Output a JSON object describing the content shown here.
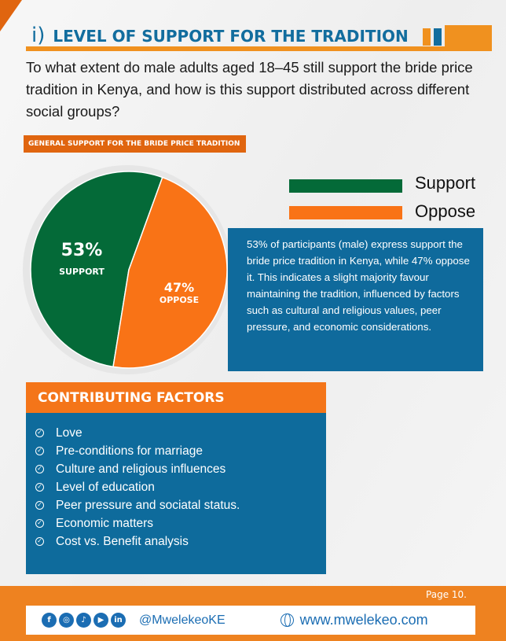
{
  "header": {
    "number": "i)",
    "title": "LEVEL OF SUPPORT FOR THE TRADITION",
    "question": "To what extent do male adults aged 18–45 still support the bride price tradition in Kenya, and how is this support distributed across different social groups?"
  },
  "section_label": "GENERAL SUPPORT FOR THE BRIDE PRICE TRADITION",
  "chart_data": {
    "type": "pie",
    "categories": [
      "Support",
      "Oppose"
    ],
    "values": [
      53,
      47
    ],
    "colors": [
      "#046a38",
      "#f97316"
    ],
    "data_labels": [
      {
        "value": "53%",
        "label": "SUPPORT"
      },
      {
        "value": "47%",
        "label": "OPPOSE"
      }
    ],
    "legend": [
      "Support",
      "Oppose"
    ],
    "legend_placement": "top-right"
  },
  "description": "53% of participants (male) express support the bride price tradition in Kenya, while 47% oppose it. This indicates a slight majority favour maintaining the tradition, influenced by factors such as cultural and religious values, peer pressure, and economic considerations.",
  "factors": {
    "title": "CONTRIBUTING FACTORS",
    "items": [
      "Love",
      "Pre-conditions for marriage",
      "Culture and religious influences",
      "Level of education",
      "Peer pressure and sociatal status.",
      "Economic matters",
      "Cost vs. Benefit analysis"
    ]
  },
  "footer": {
    "page": "Page 10.",
    "handle": "@MwelekeoKE",
    "website": "www.mwelekeo.com",
    "social_icons": [
      "facebook-icon",
      "instagram-icon",
      "tiktok-icon",
      "youtube-icon",
      "linkedin-icon"
    ]
  }
}
